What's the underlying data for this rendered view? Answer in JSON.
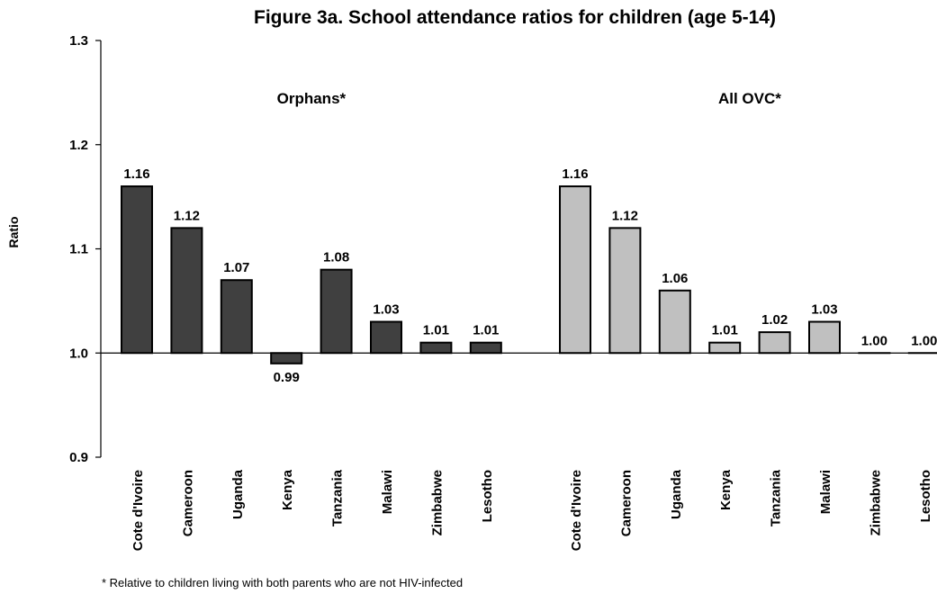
{
  "chart_data": {
    "type": "bar",
    "title": "Figure 3a. School attendance ratios for children (age 5-14)",
    "ylabel": "Ratio",
    "xlabel": "",
    "ylim": [
      0.9,
      1.3
    ],
    "yticks": [
      "0.9",
      "1.0",
      "1.1",
      "1.2",
      "1.3"
    ],
    "baseline": 1.0,
    "footnote": "* Relative to children living with both parents who are not HIV-infected",
    "groups": [
      {
        "label": "Orphans*",
        "color": "#404040",
        "categories": [
          "Cote d'Ivoire",
          "Cameroon",
          "Uganda",
          "Kenya",
          "Tanzania",
          "Malawi",
          "Zimbabwe",
          "Lesotho"
        ],
        "values": [
          1.16,
          1.12,
          1.07,
          0.99,
          1.08,
          1.03,
          1.01,
          1.01
        ],
        "labels": [
          "1.16",
          "1.12",
          "1.07",
          "0.99",
          "1.08",
          "1.03",
          "1.01",
          "1.01"
        ]
      },
      {
        "label": "All OVC*",
        "color": "#c0c0c0",
        "categories": [
          "Cote d'Ivoire",
          "Cameroon",
          "Uganda",
          "Kenya",
          "Tanzania",
          "Malawi",
          "Zimbabwe",
          "Lesotho"
        ],
        "values": [
          1.16,
          1.12,
          1.06,
          1.01,
          1.02,
          1.03,
          1.0,
          1.0
        ],
        "labels": [
          "1.16",
          "1.12",
          "1.06",
          "1.01",
          "1.02",
          "1.03",
          "1.00",
          "1.00"
        ]
      }
    ],
    "grid": false,
    "legend": "none"
  }
}
